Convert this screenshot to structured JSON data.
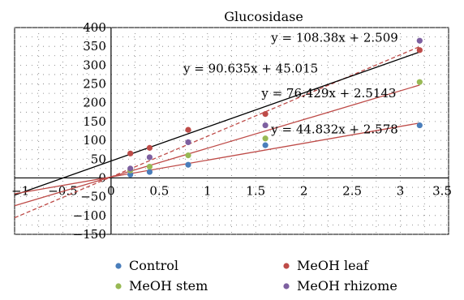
{
  "chart_data": {
    "type": "scatter",
    "title": "Glucosidase",
    "xlabel": "",
    "ylabel": "",
    "xlim": [
      -1,
      3.5
    ],
    "ylim": [
      -150,
      400
    ],
    "x_ticks": [
      -1,
      -0.5,
      0,
      0.5,
      1,
      1.5,
      2,
      2.5,
      3,
      3.5
    ],
    "x_tick_labels": [
      "−1",
      "−0.5",
      "0",
      "0.5",
      "1",
      "1.5",
      "2",
      "2.5",
      "3",
      "3.5"
    ],
    "y_ticks": [
      -150,
      -100,
      -50,
      0,
      50,
      100,
      150,
      200,
      250,
      300,
      350,
      400
    ],
    "y_tick_labels": [
      "−150",
      "−100",
      "−50",
      "0",
      "50",
      "100",
      "150",
      "200",
      "250",
      "300",
      "350",
      "400"
    ],
    "grid": true,
    "legend_position": "bottom",
    "x": [
      0.2,
      0.4,
      0.8,
      1.6,
      3.2
    ],
    "series": [
      {
        "name": "Control",
        "color": "#4a7ebb",
        "values": [
          9,
          16,
          35,
          87,
          140
        ]
      },
      {
        "name": "MeOH leaf",
        "color": "#be4b48",
        "values": [
          65,
          80,
          128,
          170,
          340
        ]
      },
      {
        "name": "MeOH stem",
        "color": "#98b954",
        "values": [
          20,
          30,
          60,
          105,
          255
        ]
      },
      {
        "name": "MeOH rhizome",
        "color": "#7d60a0",
        "values": [
          25,
          55,
          95,
          140,
          365
        ]
      }
    ],
    "trendlines": [
      {
        "equation": "y = 108.38x + 2.509",
        "slope": 108.38,
        "intercept": 2.509,
        "color": "#be4b48",
        "dashed": true
      },
      {
        "equation": "y = 90.635x + 45.015",
        "slope": 90.635,
        "intercept": 45.015,
        "color": "#000000",
        "dashed": false
      },
      {
        "equation": "y = 76.429x + 2.5143",
        "slope": 76.429,
        "intercept": 2.5143,
        "color": "#be4b48",
        "dashed": false
      },
      {
        "equation": "y = 44.832x + 2.578",
        "slope": 44.832,
        "intercept": 2.578,
        "color": "#be4b48",
        "dashed": false
      }
    ]
  }
}
